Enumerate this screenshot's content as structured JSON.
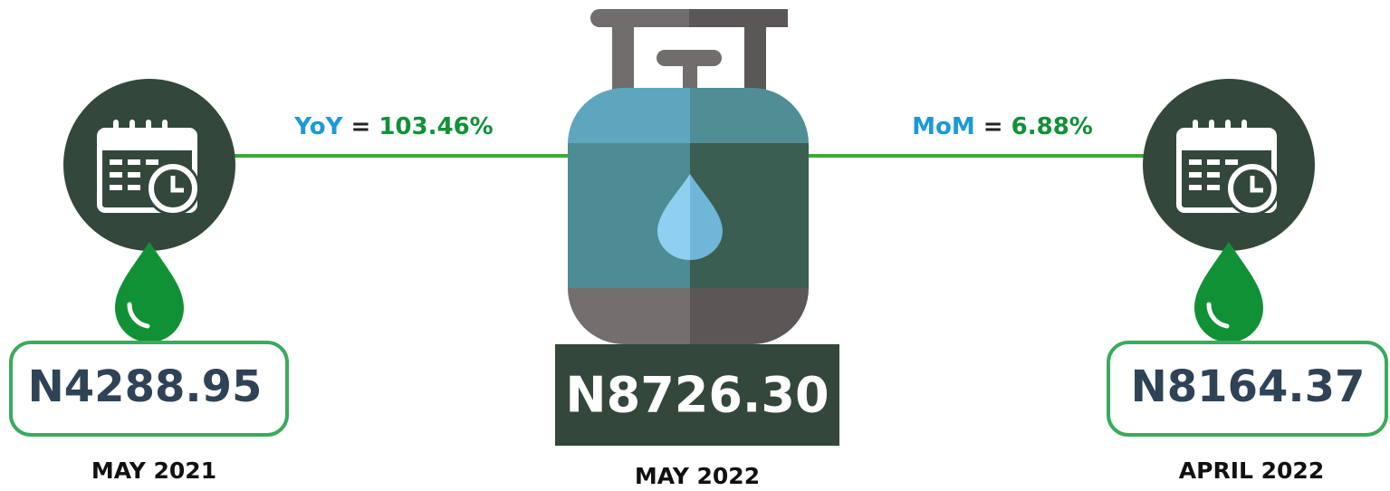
{
  "left": {
    "price": "N4288.95",
    "date": "MAY 2021"
  },
  "center": {
    "price": "N8726.30",
    "date": "MAY 2022"
  },
  "right": {
    "price": "N8164.37",
    "date": "APRIL 2022"
  },
  "yoy": {
    "label": "YoY",
    "sign": "=",
    "value": "103.46%"
  },
  "mom": {
    "label": "MoM",
    "sign": "=",
    "value": "6.88%"
  }
}
